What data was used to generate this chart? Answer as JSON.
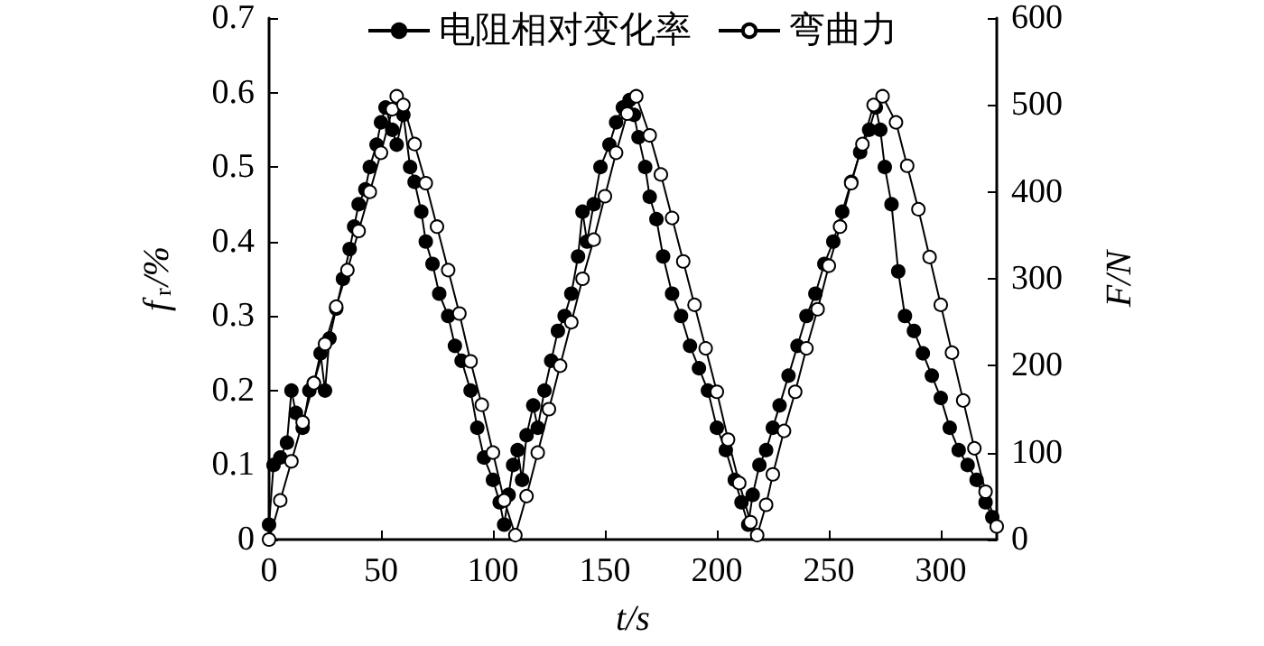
{
  "chart_data": {
    "type": "line",
    "xlabel": "t/s",
    "ylabel": "f$_{r}$/%",
    "y2label": "F/N",
    "xlim": [
      0,
      325
    ],
    "xticks": [
      0,
      50,
      100,
      150,
      200,
      250,
      300
    ],
    "ylim": [
      0,
      0.7
    ],
    "yticks": [
      0,
      0.1,
      0.2,
      0.3,
      0.4,
      0.5,
      0.6,
      0.7
    ],
    "y2lim": [
      0,
      600
    ],
    "y2ticks": [
      0,
      100,
      200,
      300,
      400,
      500,
      600
    ],
    "grid": false,
    "legend": "top",
    "marker": "circle",
    "line_style": "solid",
    "series": [
      {
        "name": "电阻相对变化率",
        "color": "#000000",
        "x": [
          0,
          2,
          5,
          8,
          10,
          12,
          15,
          18,
          20,
          23,
          25,
          27,
          30,
          33,
          36,
          38,
          40,
          43,
          45,
          48,
          50,
          52,
          55,
          57,
          60,
          63,
          65,
          68,
          70,
          73,
          76,
          80,
          83,
          86,
          90,
          93,
          96,
          100,
          103,
          105,
          107,
          109,
          111,
          113,
          115,
          118,
          120,
          123,
          126,
          129,
          132,
          135,
          138,
          140,
          142,
          145,
          148,
          152,
          155,
          158,
          161,
          163,
          165,
          168,
          170,
          173,
          176,
          180,
          184,
          188,
          192,
          196,
          200,
          204,
          208,
          211,
          214,
          216,
          219,
          222,
          225,
          228,
          232,
          236,
          240,
          244,
          248,
          252,
          256,
          260,
          264,
          268,
          271,
          273,
          275,
          278,
          281,
          284,
          288,
          292,
          296,
          300,
          304,
          308,
          312,
          316,
          320,
          323
        ],
        "values": [
          0.02,
          0.1,
          0.11,
          0.13,
          0.2,
          0.17,
          0.15,
          0.2,
          0.21,
          0.25,
          0.2,
          0.27,
          0.31,
          0.35,
          0.39,
          0.42,
          0.45,
          0.47,
          0.5,
          0.53,
          0.56,
          0.58,
          0.55,
          0.53,
          0.57,
          0.5,
          0.48,
          0.44,
          0.4,
          0.37,
          0.33,
          0.3,
          0.26,
          0.24,
          0.2,
          0.15,
          0.11,
          0.08,
          0.05,
          0.02,
          0.06,
          0.1,
          0.12,
          0.08,
          0.14,
          0.18,
          0.15,
          0.2,
          0.24,
          0.28,
          0.3,
          0.33,
          0.38,
          0.44,
          0.4,
          0.45,
          0.5,
          0.53,
          0.56,
          0.58,
          0.59,
          0.57,
          0.54,
          0.5,
          0.46,
          0.43,
          0.38,
          0.33,
          0.3,
          0.26,
          0.23,
          0.2,
          0.15,
          0.12,
          0.08,
          0.05,
          0.02,
          0.06,
          0.1,
          0.12,
          0.15,
          0.18,
          0.22,
          0.26,
          0.3,
          0.33,
          0.37,
          0.4,
          0.44,
          0.48,
          0.52,
          0.55,
          0.58,
          0.55,
          0.5,
          0.45,
          0.36,
          0.3,
          0.28,
          0.25,
          0.22,
          0.19,
          0.15,
          0.12,
          0.1,
          0.08,
          0.05,
          0.03
        ]
      },
      {
        "name": "弯曲力",
        "color": "#ffffff",
        "axis": "y2",
        "x": [
          0,
          5,
          10,
          15,
          20,
          25,
          30,
          35,
          40,
          45,
          50,
          55,
          57,
          60,
          65,
          70,
          75,
          80,
          85,
          90,
          95,
          100,
          105,
          110,
          115,
          120,
          125,
          130,
          135,
          140,
          145,
          150,
          155,
          160,
          164,
          170,
          175,
          180,
          185,
          190,
          195,
          200,
          205,
          210,
          215,
          218,
          222,
          225,
          230,
          235,
          240,
          245,
          250,
          255,
          260,
          265,
          270,
          274,
          280,
          285,
          290,
          295,
          300,
          305,
          310,
          315,
          320,
          325
        ],
        "values": [
          0,
          45,
          90,
          135,
          180,
          225,
          268,
          310,
          355,
          400,
          445,
          495,
          510,
          500,
          455,
          410,
          360,
          310,
          260,
          205,
          155,
          100,
          45,
          5,
          50,
          100,
          150,
          200,
          250,
          300,
          345,
          395,
          445,
          490,
          510,
          465,
          420,
          370,
          320,
          270,
          220,
          170,
          115,
          65,
          20,
          5,
          40,
          75,
          125,
          170,
          220,
          265,
          315,
          360,
          410,
          455,
          500,
          510,
          480,
          430,
          380,
          325,
          270,
          215,
          160,
          105,
          55,
          15
        ]
      }
    ]
  }
}
